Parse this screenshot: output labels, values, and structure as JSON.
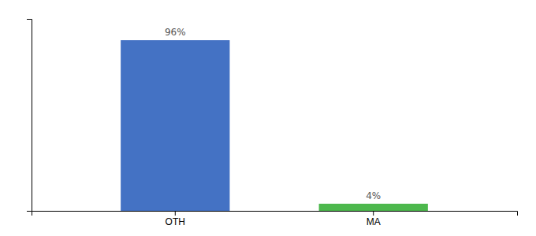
{
  "chart_data": {
    "type": "bar",
    "categories": [
      "OTH",
      "MA"
    ],
    "values": [
      96,
      4
    ],
    "value_labels": [
      "96%",
      "4%"
    ],
    "colors": [
      "#4472c4",
      "#4db84d"
    ],
    "ylim": [
      0,
      108
    ],
    "yticks": [],
    "data_labels": true,
    "tick_labels": "x",
    "grid": false
  }
}
